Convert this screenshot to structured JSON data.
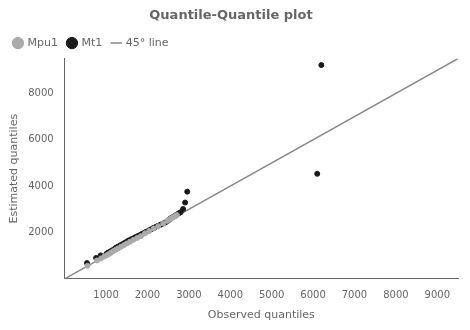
{
  "chart_data": {
    "type": "scatter",
    "title": "Quantile-Quantile plot",
    "xlabel": "Observed quantiles",
    "ylabel": "Estimated quantiles",
    "xlim": [
      0,
      9500
    ],
    "ylim": [
      0,
      9500
    ],
    "xticks": [
      1000,
      2000,
      3000,
      4000,
      5000,
      6000,
      7000,
      8000,
      9000
    ],
    "yticks": [
      2000,
      4000,
      6000,
      8000
    ],
    "grid": false,
    "legend": "upper left",
    "series": [
      {
        "name": "Mpu1",
        "color": "#aaaaaa",
        "marker": "circle",
        "x": [
          550,
          780,
          880,
          960,
          1020,
          1070,
          1120,
          1170,
          1230,
          1290,
          1360,
          1430,
          1500,
          1580,
          1660,
          1750,
          1840,
          1940,
          2040,
          2150,
          2260,
          2380,
          2480,
          2550,
          2600,
          2650,
          2680,
          2710
        ],
        "y": [
          560,
          790,
          880,
          960,
          1020,
          1070,
          1130,
          1190,
          1250,
          1310,
          1380,
          1450,
          1520,
          1600,
          1680,
          1760,
          1840,
          1960,
          2060,
          2170,
          2270,
          2390,
          2500,
          2580,
          2630,
          2680,
          2710,
          2750
        ]
      },
      {
        "name": "Mt1",
        "color": "#1a1a1a",
        "marker": "circle",
        "x": [
          540,
          760,
          870,
          1010,
          1050,
          1100,
          1150,
          1200,
          1240,
          1290,
          1340,
          1390,
          1440,
          1490,
          1540,
          1600,
          1650,
          1700,
          1760,
          1810,
          1860,
          1920,
          1970,
          2030,
          2080,
          2140,
          2190,
          2250,
          2310,
          2360,
          2420,
          2470,
          2520,
          2560,
          2610,
          2660,
          2700,
          2750,
          2800,
          2860,
          2910,
          2960,
          6100,
          6200
        ],
        "y": [
          680,
          900,
          1010,
          1080,
          1130,
          1180,
          1230,
          1280,
          1340,
          1390,
          1440,
          1490,
          1540,
          1590,
          1650,
          1700,
          1740,
          1790,
          1840,
          1880,
          1930,
          1980,
          2030,
          2080,
          2130,
          2190,
          2230,
          2280,
          2330,
          2370,
          2420,
          2470,
          2540,
          2610,
          2660,
          2710,
          2760,
          2820,
          2870,
          3010,
          3290,
          3760,
          4530,
          9220
        ]
      },
      {
        "name": "45° line",
        "type": "line",
        "color": "#888888",
        "x": [
          0,
          9500
        ],
        "y": [
          0,
          9500
        ]
      }
    ]
  }
}
